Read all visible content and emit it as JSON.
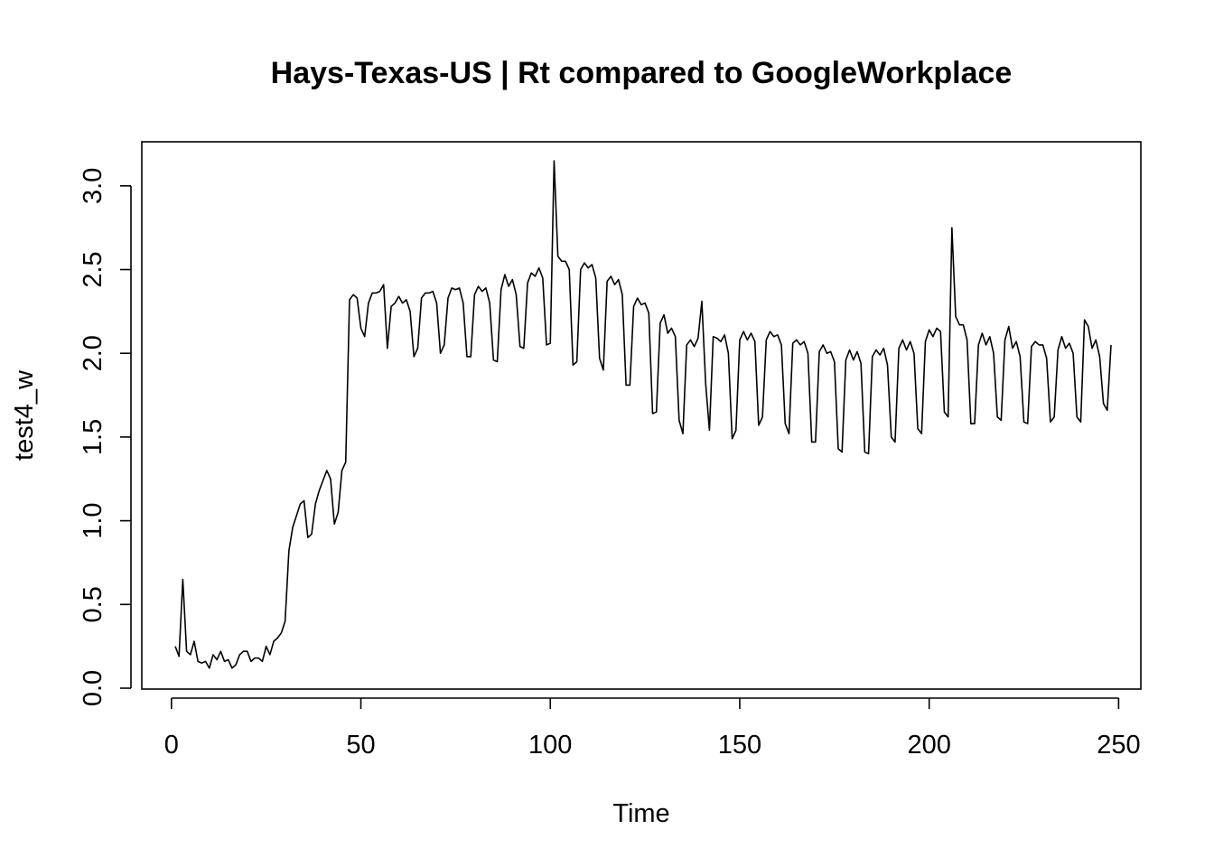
{
  "chart_data": {
    "type": "line",
    "title": "Hays-Texas-US | Rt compared to GoogleWorkplace",
    "xlabel": "Time",
    "ylabel": "test4_w",
    "xlim": [
      1,
      248
    ],
    "ylim": [
      0,
      3.15
    ],
    "x_ticks": [
      0,
      50,
      100,
      150,
      200,
      250
    ],
    "x_tick_labels": [
      "0",
      "50",
      "100",
      "150",
      "200",
      "250"
    ],
    "y_ticks": [
      0,
      0.5,
      1,
      1.5,
      2,
      2.5,
      3
    ],
    "y_tick_labels": [
      "0.0",
      "0.5",
      "1.0",
      "1.5",
      "2.0",
      "2.5",
      "3.0"
    ],
    "grid": false,
    "line_color": "#000000",
    "series": [
      {
        "x_start": 1,
        "values": [
          0.25,
          0.19,
          0.65,
          0.22,
          0.2,
          0.28,
          0.16,
          0.15,
          0.16,
          0.12,
          0.2,
          0.17,
          0.22,
          0.16,
          0.17,
          0.12,
          0.14,
          0.2,
          0.22,
          0.22,
          0.16,
          0.18,
          0.18,
          0.16,
          0.25,
          0.2,
          0.28,
          0.3,
          0.33,
          0.4,
          0.82,
          0.96,
          1.03,
          1.1,
          1.12,
          0.9,
          0.92,
          1.1,
          1.18,
          1.24,
          1.3,
          1.25,
          0.98,
          1.05,
          1.3,
          1.35,
          2.32,
          2.35,
          2.33,
          2.15,
          2.1,
          2.3,
          2.36,
          2.36,
          2.37,
          2.41,
          2.03,
          2.28,
          2.3,
          2.34,
          2.3,
          2.32,
          2.25,
          1.98,
          2.03,
          2.33,
          2.36,
          2.36,
          2.37,
          2.3,
          2.0,
          2.05,
          2.33,
          2.39,
          2.38,
          2.39,
          2.3,
          1.98,
          1.98,
          2.35,
          2.4,
          2.37,
          2.39,
          2.3,
          1.96,
          1.95,
          2.38,
          2.47,
          2.4,
          2.44,
          2.35,
          2.04,
          2.03,
          2.42,
          2.48,
          2.46,
          2.51,
          2.45,
          2.05,
          2.06,
          3.15,
          2.58,
          2.55,
          2.55,
          2.5,
          1.93,
          1.95,
          2.5,
          2.54,
          2.51,
          2.53,
          2.45,
          1.97,
          1.9,
          2.43,
          2.46,
          2.41,
          2.44,
          2.35,
          1.81,
          1.81,
          2.28,
          2.33,
          2.29,
          2.3,
          2.24,
          1.64,
          1.65,
          2.18,
          2.23,
          2.12,
          2.15,
          2.1,
          1.6,
          1.52,
          2.05,
          2.08,
          2.04,
          2.09,
          2.31,
          1.82,
          1.54,
          2.1,
          2.09,
          2.07,
          2.11,
          2.0,
          1.49,
          1.54,
          2.08,
          2.13,
          2.08,
          2.12,
          2.07,
          1.57,
          1.62,
          2.08,
          2.13,
          2.1,
          2.11,
          2.05,
          1.58,
          1.52,
          2.06,
          2.08,
          2.05,
          2.07,
          2.0,
          1.47,
          1.47,
          2.01,
          2.05,
          2.0,
          2.01,
          1.95,
          1.43,
          1.41,
          1.96,
          2.02,
          1.96,
          2.01,
          1.94,
          1.41,
          1.4,
          1.98,
          2.02,
          1.99,
          2.03,
          1.93,
          1.5,
          1.47,
          2.03,
          2.08,
          2.02,
          2.07,
          2.0,
          1.55,
          1.52,
          2.07,
          2.14,
          2.1,
          2.15,
          2.13,
          1.65,
          1.62,
          2.75,
          2.22,
          2.17,
          2.17,
          2.08,
          1.58,
          1.58,
          2.05,
          2.12,
          2.05,
          2.1,
          2.0,
          1.62,
          1.6,
          2.08,
          2.16,
          2.03,
          2.07,
          1.98,
          1.59,
          1.58,
          2.04,
          2.07,
          2.05,
          2.05,
          1.97,
          1.59,
          1.62,
          2.02,
          2.1,
          2.03,
          2.06,
          2.0,
          1.62,
          1.59,
          2.2,
          2.16,
          2.03,
          2.08,
          1.98,
          1.7,
          1.66,
          2.05
        ]
      }
    ]
  }
}
